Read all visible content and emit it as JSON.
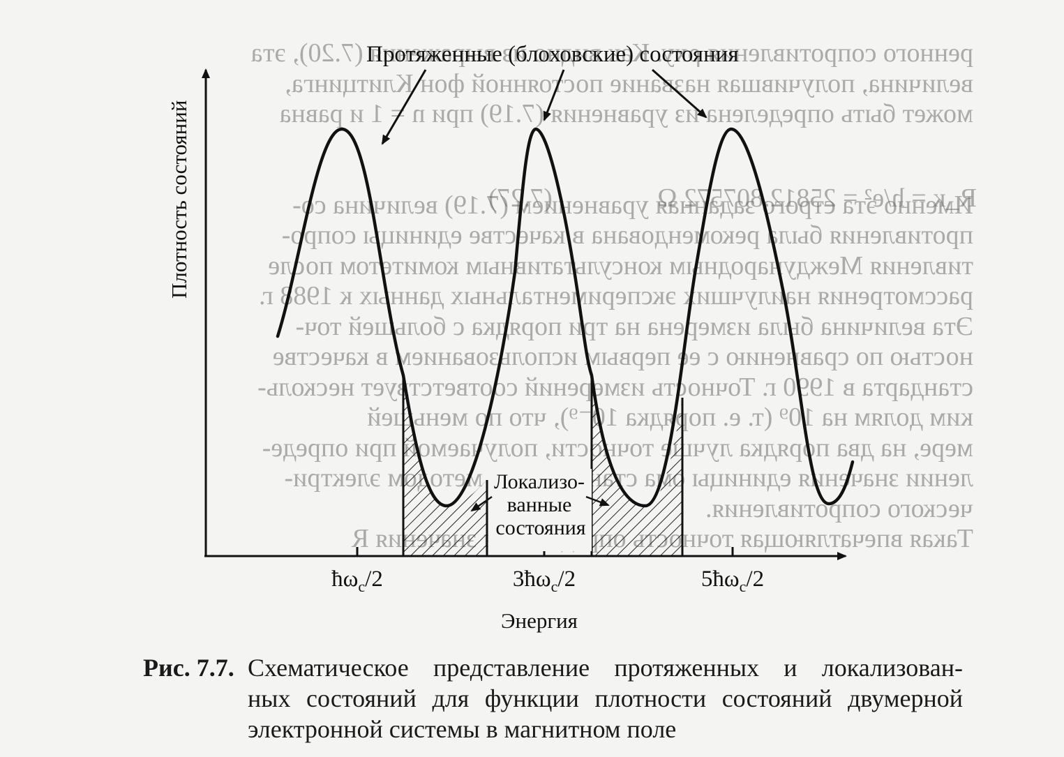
{
  "figure": {
    "top_label": "Протяженные (блоховские) состояния",
    "y_axis_label": "Плотность состояний",
    "x_axis_label": "Энергия",
    "tick_labels": [
      "ħω_c/2",
      "3ħω_c/2",
      "5ħω_c/2"
    ],
    "localized_label": [
      "Локализо-",
      "ванные",
      "состояния"
    ]
  },
  "caption": {
    "label": "Рис. 7.7.",
    "lines": [
      "Схематическое представление протяженных и локализован-",
      "ных состояний для функции плотности состояний двумерной",
      "электронной системы в магнитном поле"
    ]
  },
  "bleed_through": {
    "paragraph": "ренного сопротивления ρxy. Как видно из выражения (7.20), эта\nвеличина, получившая название постоянной фон Клитцинга,\nможет быть определена из уравнения (7.19) при n = 1 и равна\n\n\nИменно эта строго заданная уравнением (7.19) величина со-\nпротивления была рекомендована в качестве единицы сопро-\nтивления Международным консультативным комитетом после\nрассмотрения наилучших экспериментальных данных к 1988 г.\nЭта величина была измерена на три порядка с большей точ-\nностью по сравнению с ее первым использованием в качестве\nстандарта в 1990 г. Точность измерений соответствует несколь-\nким долям на 10⁹ (т. е. порядка 10⁻⁹), что по меньшей\nмере, на два порядка лучше точности, получаемой при опреде-\nлении значения единицы ома стандартным методом электри-\nческого сопротивления.\nТакая впечатляющая точность определения значения R",
    "equation": "R_к = h/e² = 25812.807572 Ω",
    "equation_number": "(7.27)"
  }
}
